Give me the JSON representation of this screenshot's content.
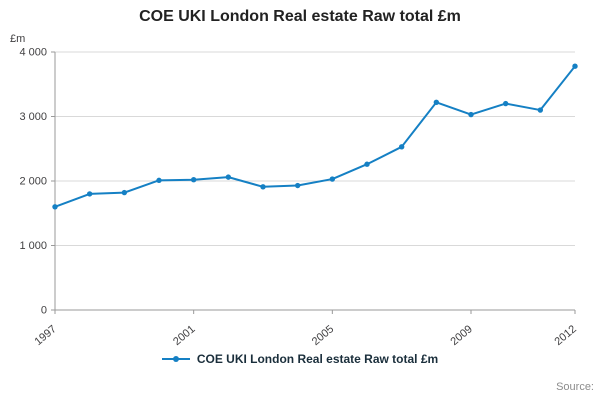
{
  "title": "COE UKI London Real estate Raw total £m",
  "y_axis_unit": "£m",
  "source_label": "Source:",
  "legend": {
    "label": "COE UKI London Real estate Raw total £m"
  },
  "colors": {
    "line": "#1580c4",
    "grid": "#d9d9d9",
    "axis": "#9a9a9a",
    "tick_text": "#414042"
  },
  "chart_data": {
    "type": "line",
    "title": "COE UKI London Real estate Raw total £m",
    "xlabel": "",
    "ylabel": "£m",
    "x": [
      1997,
      1998,
      1999,
      2000,
      2001,
      2002,
      2003,
      2004,
      2005,
      2006,
      2007,
      2008,
      2009,
      2010,
      2011,
      2012
    ],
    "values": [
      1600,
      1800,
      1820,
      2010,
      2020,
      2060,
      1910,
      1930,
      2030,
      2260,
      2530,
      3220,
      3030,
      3200,
      3100,
      3780
    ],
    "ylim": [
      0,
      4000
    ],
    "y_ticks": [
      0,
      1000,
      2000,
      3000,
      4000
    ],
    "y_tick_labels": [
      "0",
      "1 000",
      "2 000",
      "3 000",
      "4 000"
    ],
    "x_tick_years": [
      1997,
      2001,
      2005,
      2009,
      2012
    ],
    "x_tick_labels": [
      "1997",
      "2001",
      "2005",
      "2009",
      "2012"
    ],
    "grid": "horizontal",
    "legend_position": "bottom",
    "series_name": "COE UKI London Real estate Raw total £m"
  }
}
